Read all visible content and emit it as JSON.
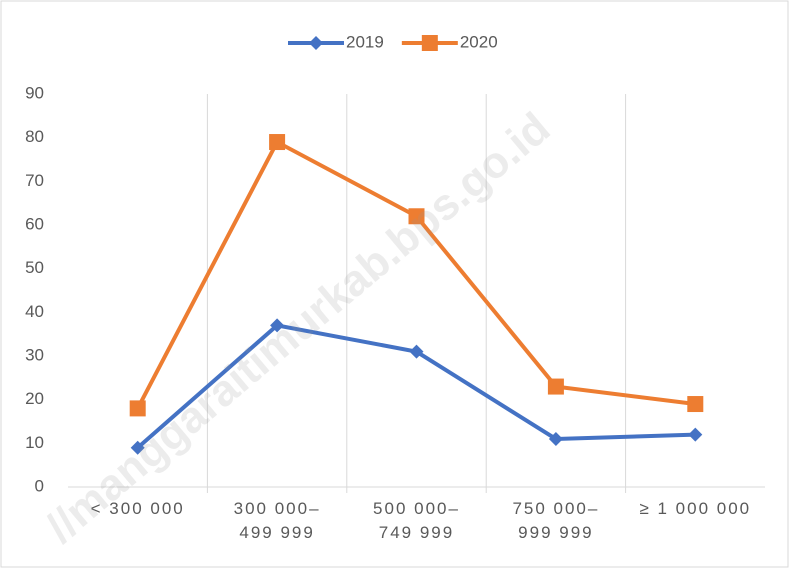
{
  "chart_data": {
    "type": "line",
    "categories": [
      "< 300 000",
      "300 000–\n499 999",
      "500 000–\n749 999",
      "750 000–\n999 999",
      "≥ 1 000 000"
    ],
    "series": [
      {
        "name": "2019",
        "color": "#4472c4",
        "marker": "diamond",
        "values": [
          9,
          37,
          31,
          11,
          12
        ]
      },
      {
        "name": "2020",
        "color": "#ed7d31",
        "marker": "square",
        "values": [
          18,
          79,
          62,
          23,
          19
        ]
      }
    ],
    "ylim": [
      0,
      90
    ],
    "yticks": [
      0,
      10,
      20,
      30,
      40,
      50,
      60,
      70,
      80,
      90
    ],
    "legend": "top",
    "annotation": "//manggaraitimurkab.bps.go.id"
  }
}
